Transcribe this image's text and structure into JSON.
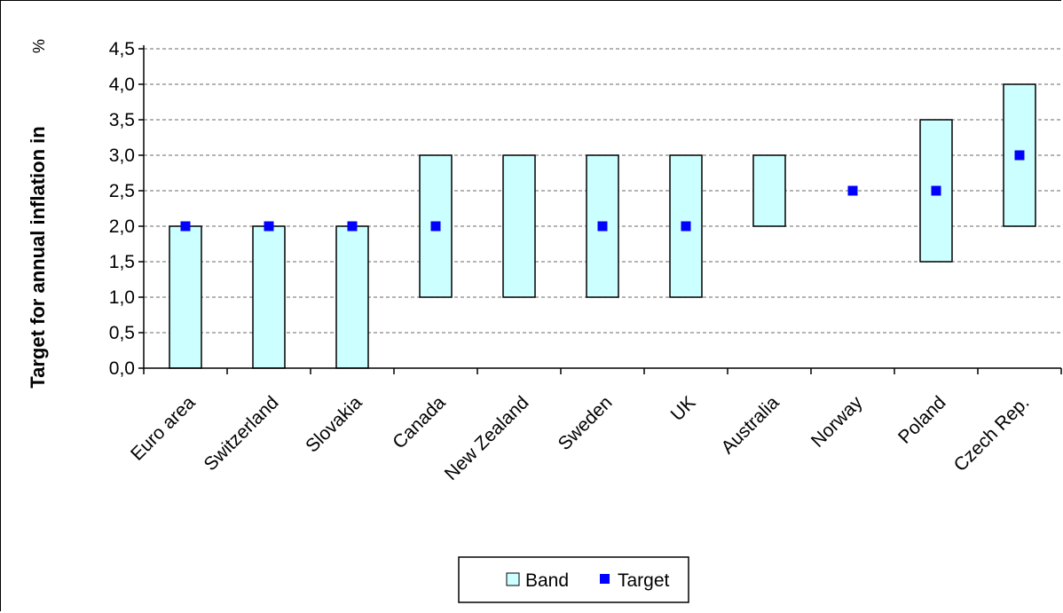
{
  "chart_data": {
    "type": "bar",
    "title": "",
    "xlabel": "",
    "ylabel": "Target for annual inflation in",
    "y_unit": "%",
    "ylim": [
      0,
      4.5
    ],
    "y_ticks": [
      "0,0",
      "0,5",
      "1,0",
      "1,5",
      "2,0",
      "2,5",
      "3,0",
      "3,5",
      "4,0",
      "4,5"
    ],
    "grid": true,
    "legend_position": "bottom",
    "categories": [
      "Euro area",
      "Switzerland",
      "Slovakia",
      "Canada",
      "New Zealand",
      "Sweden",
      "UK",
      "Australia",
      "Norway",
      "Poland",
      "Czech Rep."
    ],
    "series": [
      {
        "name": "Band",
        "kind": "range",
        "color": "#ccffff",
        "low": [
          0.0,
          0.0,
          0.0,
          1.0,
          1.0,
          1.0,
          1.0,
          2.0,
          null,
          1.5,
          2.0
        ],
        "high": [
          2.0,
          2.0,
          2.0,
          3.0,
          3.0,
          3.0,
          3.0,
          3.0,
          null,
          3.5,
          4.0
        ]
      },
      {
        "name": "Target",
        "kind": "point",
        "color": "#0000ff",
        "values": [
          2.0,
          2.0,
          2.0,
          2.0,
          null,
          2.0,
          2.0,
          null,
          2.5,
          2.5,
          3.0
        ]
      }
    ]
  }
}
